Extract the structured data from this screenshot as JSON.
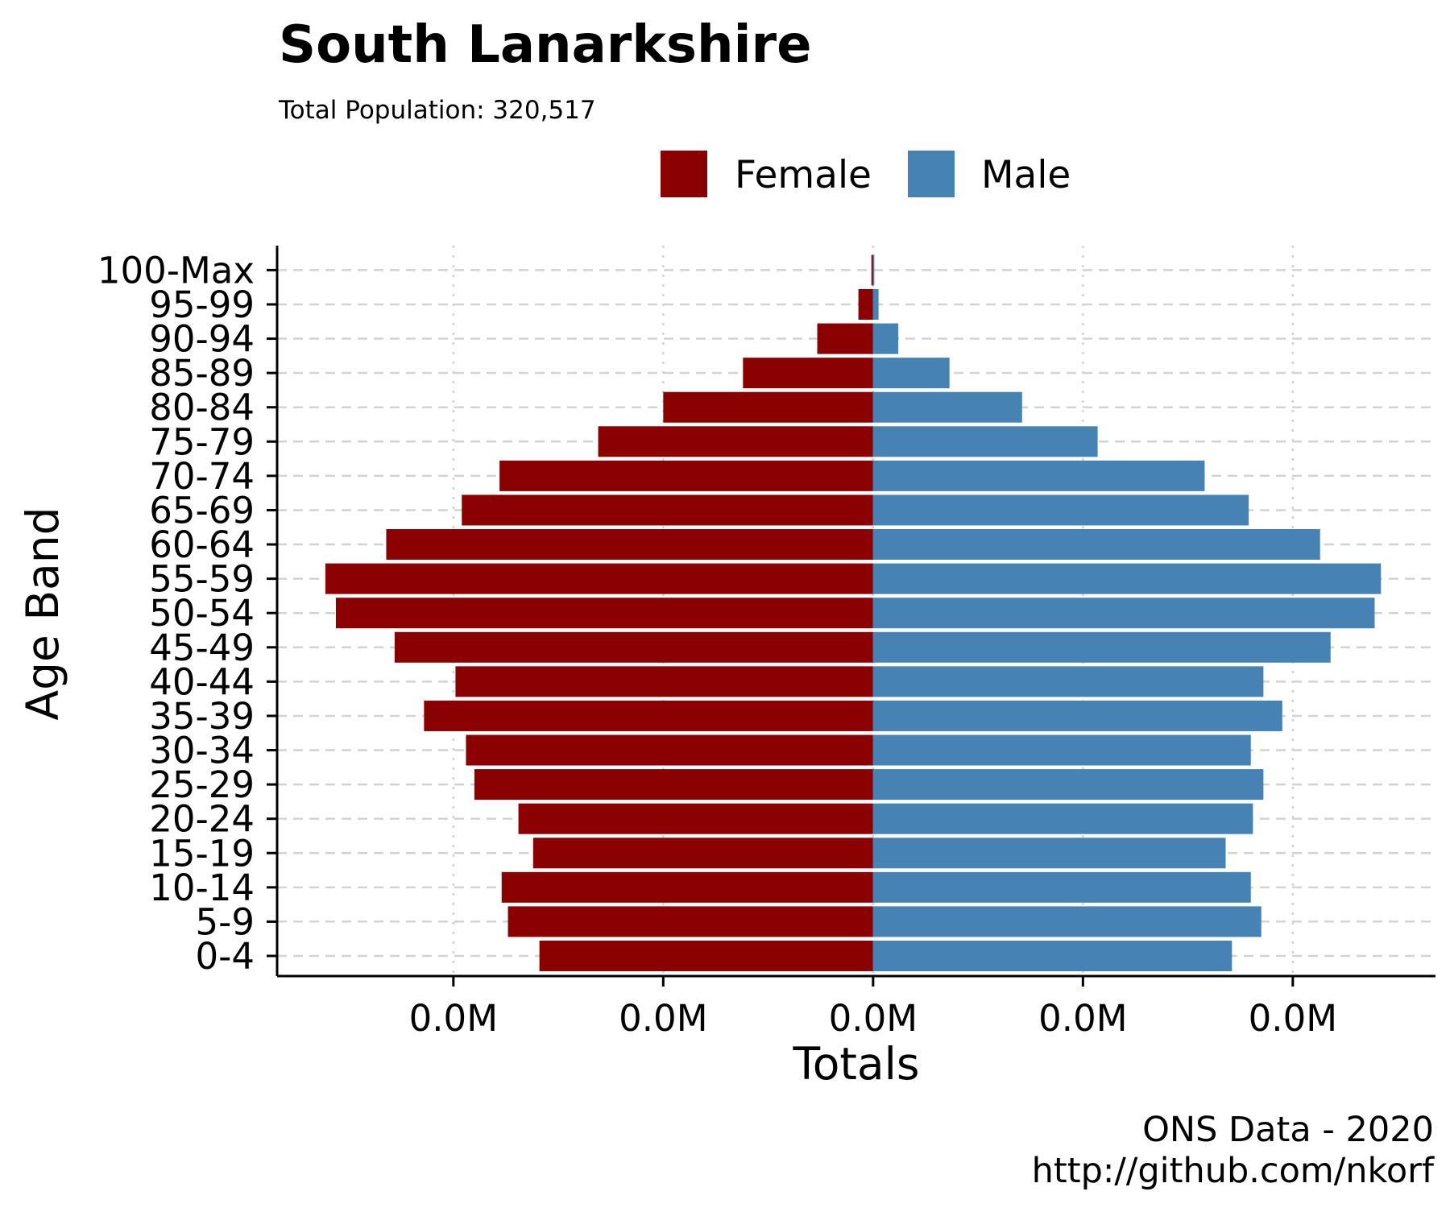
{
  "chart_data": {
    "type": "bar",
    "orientation": "horizontal",
    "title": "South Lanarkshire",
    "subtitle": "Total Population:  320,517",
    "xlabel": "Totals",
    "ylabel": "Age Band",
    "caption_lines": [
      "ONS Data - 2020",
      "http://github.com/nkorf"
    ],
    "categories": [
      "0-4",
      "5-9",
      "10-14",
      "15-19",
      "20-24",
      "25-29",
      "30-34",
      "35-39",
      "40-44",
      "45-49",
      "50-54",
      "55-59",
      "60-64",
      "65-69",
      "70-74",
      "75-79",
      "80-84",
      "85-89",
      "90-94",
      "95-99",
      "100-Max"
    ],
    "series": [
      {
        "name": "Female",
        "color": "#8B0000",
        "values": [
          -7950,
          -8700,
          -8850,
          -8100,
          -8450,
          -9500,
          -9700,
          -10700,
          -9950,
          -11400,
          -12800,
          -13050,
          -11600,
          -9800,
          -8900,
          -6550,
          -5000,
          -3100,
          -1330,
          -350,
          -40
        ]
      },
      {
        "name": "Male",
        "color": "#4682B4",
        "values": [
          8550,
          9250,
          9000,
          8400,
          9050,
          9300,
          9000,
          9750,
          9300,
          10900,
          11950,
          12100,
          10650,
          8950,
          7900,
          5350,
          3550,
          1820,
          600,
          130,
          15
        ]
      }
    ],
    "xlim": [
      -14200,
      13400
    ],
    "xticks": [
      -10000,
      -5000,
      0,
      5000,
      10000
    ],
    "xtick_labels": [
      "0.0M",
      "0.0M",
      "0.0M",
      "0.0M",
      "0.0M"
    ],
    "grid": {
      "x": "dotted",
      "y": "dashed"
    },
    "legend_position": "top"
  }
}
